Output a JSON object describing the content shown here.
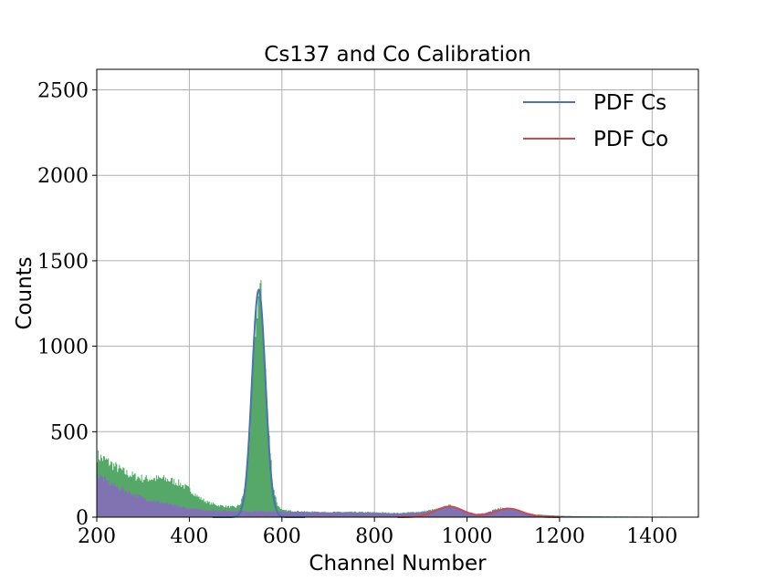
{
  "chart_data": {
    "type": "area",
    "title": "Cs137 and Co Calibration",
    "xlabel": "Channel Number",
    "ylabel": "Counts",
    "xlim": [
      200,
      1500
    ],
    "ylim": [
      0,
      2620
    ],
    "xticks": [
      200,
      400,
      600,
      800,
      1000,
      1200,
      1400
    ],
    "yticks": [
      0,
      500,
      1000,
      1500,
      2000,
      2500
    ],
    "grid": true,
    "legend_position": "top-right",
    "series": [
      {
        "kind": "histogram",
        "color": "#55a868",
        "x": [
          200,
          220,
          240,
          260,
          280,
          300,
          320,
          340,
          360,
          380,
          400,
          420,
          440,
          460,
          480,
          500,
          510,
          520,
          530,
          540,
          545,
          550,
          555,
          560,
          570,
          580,
          590,
          600,
          650,
          700,
          750,
          800,
          850,
          900,
          940,
          960,
          980,
          1000,
          1020,
          1040,
          1060,
          1080,
          1100,
          1120,
          1150,
          1200,
          1250,
          1300,
          1400,
          1500
        ],
        "y": [
          360,
          330,
          295,
          260,
          240,
          225,
          225,
          225,
          215,
          195,
          160,
          115,
          85,
          70,
          62,
          58,
          80,
          180,
          520,
          1050,
          1250,
          1320,
          1250,
          1050,
          520,
          180,
          70,
          40,
          32,
          30,
          30,
          28,
          24,
          32,
          50,
          68,
          55,
          30,
          18,
          25,
          45,
          55,
          45,
          28,
          15,
          8,
          5,
          4,
          3,
          2
        ]
      },
      {
        "kind": "histogram",
        "color": "#8172b2",
        "x": [
          200,
          220,
          240,
          260,
          280,
          300,
          320,
          340,
          360,
          380,
          400,
          420,
          440,
          460,
          480,
          500,
          520,
          540,
          560,
          580,
          600,
          650,
          700,
          750,
          800,
          850,
          900,
          940,
          960,
          980,
          1000,
          1020,
          1040,
          1060,
          1080,
          1100,
          1120,
          1150,
          1200,
          1250,
          1300,
          1400,
          1500
        ],
        "y": [
          250,
          210,
          180,
          155,
          130,
          110,
          95,
          85,
          70,
          60,
          50,
          45,
          40,
          38,
          36,
          35,
          34,
          34,
          33,
          32,
          32,
          30,
          28,
          26,
          24,
          20,
          28,
          45,
          62,
          50,
          28,
          18,
          24,
          42,
          52,
          42,
          25,
          12,
          6,
          4,
          3,
          2,
          2
        ]
      },
      {
        "name": "PDF Cs",
        "kind": "gaussian",
        "color": "#4c72b0",
        "mu": 550,
        "sigma": 14.5,
        "amplitude": 1330,
        "range": [
          450,
          650
        ]
      },
      {
        "name": "PDF Co",
        "kind": "double_gaussian",
        "color": "#c44e52",
        "mu1": 962,
        "sigma1": 30,
        "amplitude1": 62,
        "mu2": 1090,
        "sigma2": 30,
        "amplitude2": 50,
        "range": [
          850,
          1200
        ]
      }
    ]
  }
}
